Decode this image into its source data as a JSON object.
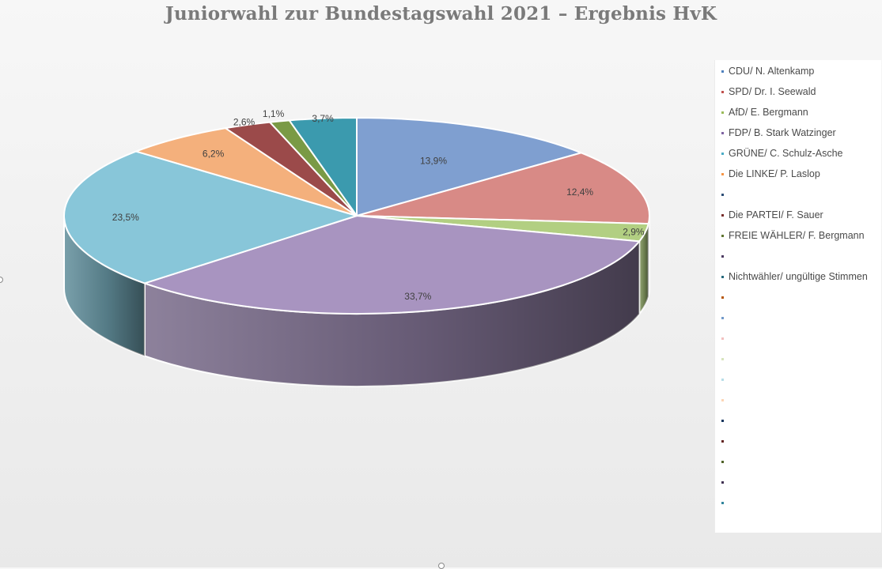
{
  "chart_data": {
    "type": "pie",
    "title": "Juniorwahl zur Bundestagswahl 2021 – Ergebnis HvK",
    "slices": [
      {
        "label": "13,9%",
        "value": 13.9,
        "color": "#7f9fd0"
      },
      {
        "label": "12,4%",
        "value": 12.4,
        "color": "#d88a86"
      },
      {
        "label": "2,9%",
        "value": 2.9,
        "color": "#b2cf82"
      },
      {
        "label": "33,7%",
        "value": 33.7,
        "color": "#a894c0"
      },
      {
        "label": "23,5%",
        "value": 23.5,
        "color": "#88c6d9"
      },
      {
        "label": "6,2%",
        "value": 6.2,
        "color": "#f4b07c"
      },
      {
        "label": "2,6%",
        "value": 2.6,
        "color": "#9b4a4a"
      },
      {
        "label": "1,1%",
        "value": 1.1,
        "color": "#7a9a45"
      },
      {
        "label": "3,7%",
        "value": 3.7,
        "color": "#3b9aae"
      }
    ],
    "legend": {
      "placement": "right",
      "entries": [
        {
          "label": "CDU/ N. Altenkamp",
          "color": "#4f81bd"
        },
        {
          "label": "SPD/ Dr. I. Seewald",
          "color": "#c0504d"
        },
        {
          "label": "AfD/ E. Bergmann",
          "color": "#9bbb59"
        },
        {
          "label": "FDP/ B. Stark Watzinger",
          "color": "#8064a2"
        },
        {
          "label": "GRÜNE/ C. Schulz-Asche",
          "color": "#4bacc6"
        },
        {
          "label": "Die LINKE/ P. Laslop",
          "color": "#f79646"
        },
        {
          "label": "",
          "color": "#2c4d75"
        },
        {
          "label": "Die PARTEI/ F. Sauer",
          "color": "#772c2a"
        },
        {
          "label": "FREIE WÄHLER/ F. Bergmann",
          "color": "#5f7530"
        },
        {
          "label": "",
          "color": "#4d3b62"
        },
        {
          "label": "Nichtwähler/ ungültige Stimmen",
          "color": "#276a7c"
        },
        {
          "label": "",
          "color": "#b65708"
        },
        {
          "label": "",
          "color": "#729aca"
        },
        {
          "label": "",
          "color": "#f2c0bf"
        },
        {
          "label": "",
          "color": "#d7e4bd"
        },
        {
          "label": "",
          "color": "#b7dde8"
        },
        {
          "label": "",
          "color": "#fcd5b5"
        },
        {
          "label": "",
          "color": "#17375e"
        },
        {
          "label": "",
          "color": "#632523"
        },
        {
          "label": "",
          "color": "#4f6228"
        },
        {
          "label": "",
          "color": "#403152"
        },
        {
          "label": "",
          "color": "#31859c"
        }
      ]
    }
  }
}
